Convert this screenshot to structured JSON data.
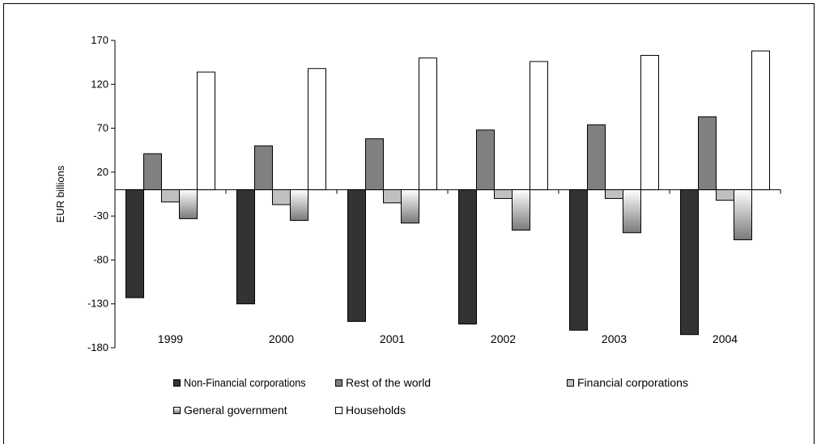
{
  "chart_data": {
    "type": "bar",
    "ylabel": "EUR billions",
    "ylim": [
      -180,
      170
    ],
    "yticks": [
      170,
      120,
      70,
      20,
      -30,
      -80,
      -130,
      -180
    ],
    "categories": [
      "1999",
      "2000",
      "2001",
      "2002",
      "2003",
      "2004"
    ],
    "series": [
      {
        "name": "Non-Financial corporations",
        "color": "#333333",
        "values": [
          -123,
          -130,
          -150,
          -153,
          -160,
          -165
        ]
      },
      {
        "name": "Rest of the world",
        "color": "#808080",
        "values": [
          41,
          50,
          58,
          68,
          74,
          83
        ]
      },
      {
        "name": "Financial corporations",
        "color": "#c0c0c0",
        "values": [
          -14,
          -17,
          -15,
          -10,
          -10,
          -12
        ]
      },
      {
        "name": "General government",
        "color": "gradient",
        "values": [
          -33,
          -35,
          -38,
          -46,
          -49,
          -57
        ]
      },
      {
        "name": "Households",
        "color": "#ffffff",
        "values": [
          134,
          138,
          150,
          146,
          153,
          158
        ]
      }
    ]
  }
}
